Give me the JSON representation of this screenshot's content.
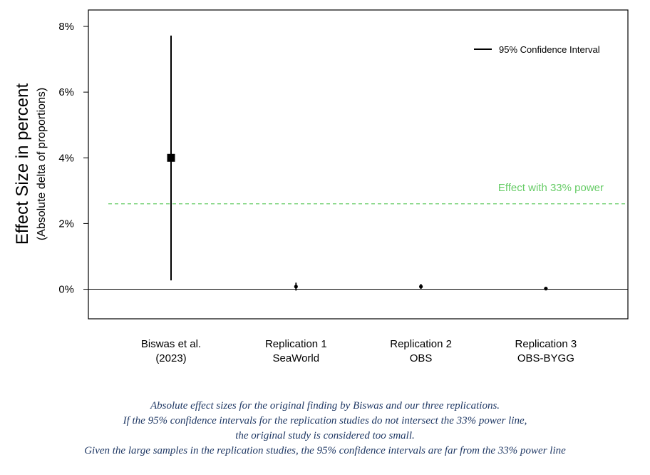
{
  "chart_data": {
    "type": "scatter",
    "title": "",
    "ylabel": "Effect Size in percent",
    "ylabel_sub": "(Absolute delta of proportions)",
    "xlabel": "",
    "ylim": [
      -0.9,
      8.5
    ],
    "yticks": [
      {
        "value": 0,
        "label": "0%"
      },
      {
        "value": 2,
        "label": "2%"
      },
      {
        "value": 4,
        "label": "4%"
      },
      {
        "value": 6,
        "label": "6%"
      },
      {
        "value": 8,
        "label": "8%"
      }
    ],
    "grid": false,
    "legend": {
      "placement": "top-right",
      "label": "95% Confidence Interval"
    },
    "reference_line": {
      "value": 2.6,
      "label": "Effect with 33% power",
      "color": "#66cc66"
    },
    "zero_line": 0,
    "points": [
      {
        "line1": "Biswas et al.",
        "line2": "(2023)",
        "estimate": 4.0,
        "ci_low": 0.27,
        "ci_high": 7.72,
        "marker": "square"
      },
      {
        "line1": "Replication 1",
        "line2": "SeaWorld",
        "estimate": 0.08,
        "ci_low": -0.04,
        "ci_high": 0.2,
        "marker": "dot"
      },
      {
        "line1": "Replication 2",
        "line2": "OBS",
        "estimate": 0.08,
        "ci_low": 0.0,
        "ci_high": 0.16,
        "marker": "dot"
      },
      {
        "line1": "Replication 3",
        "line2": "OBS-BYGG",
        "estimate": 0.02,
        "ci_low": -0.01,
        "ci_high": 0.05,
        "marker": "dot"
      }
    ]
  },
  "caption": [
    "Absolute effect sizes for the original finding by Biswas and our three replications.",
    "If the 95% confidence intervals for the replication studies do not intersect the 33% power line,",
    "the original study is considered too small.",
    "Given the large samples in the replication studies, the 95% confidence intervals are far from the 33% power line"
  ]
}
